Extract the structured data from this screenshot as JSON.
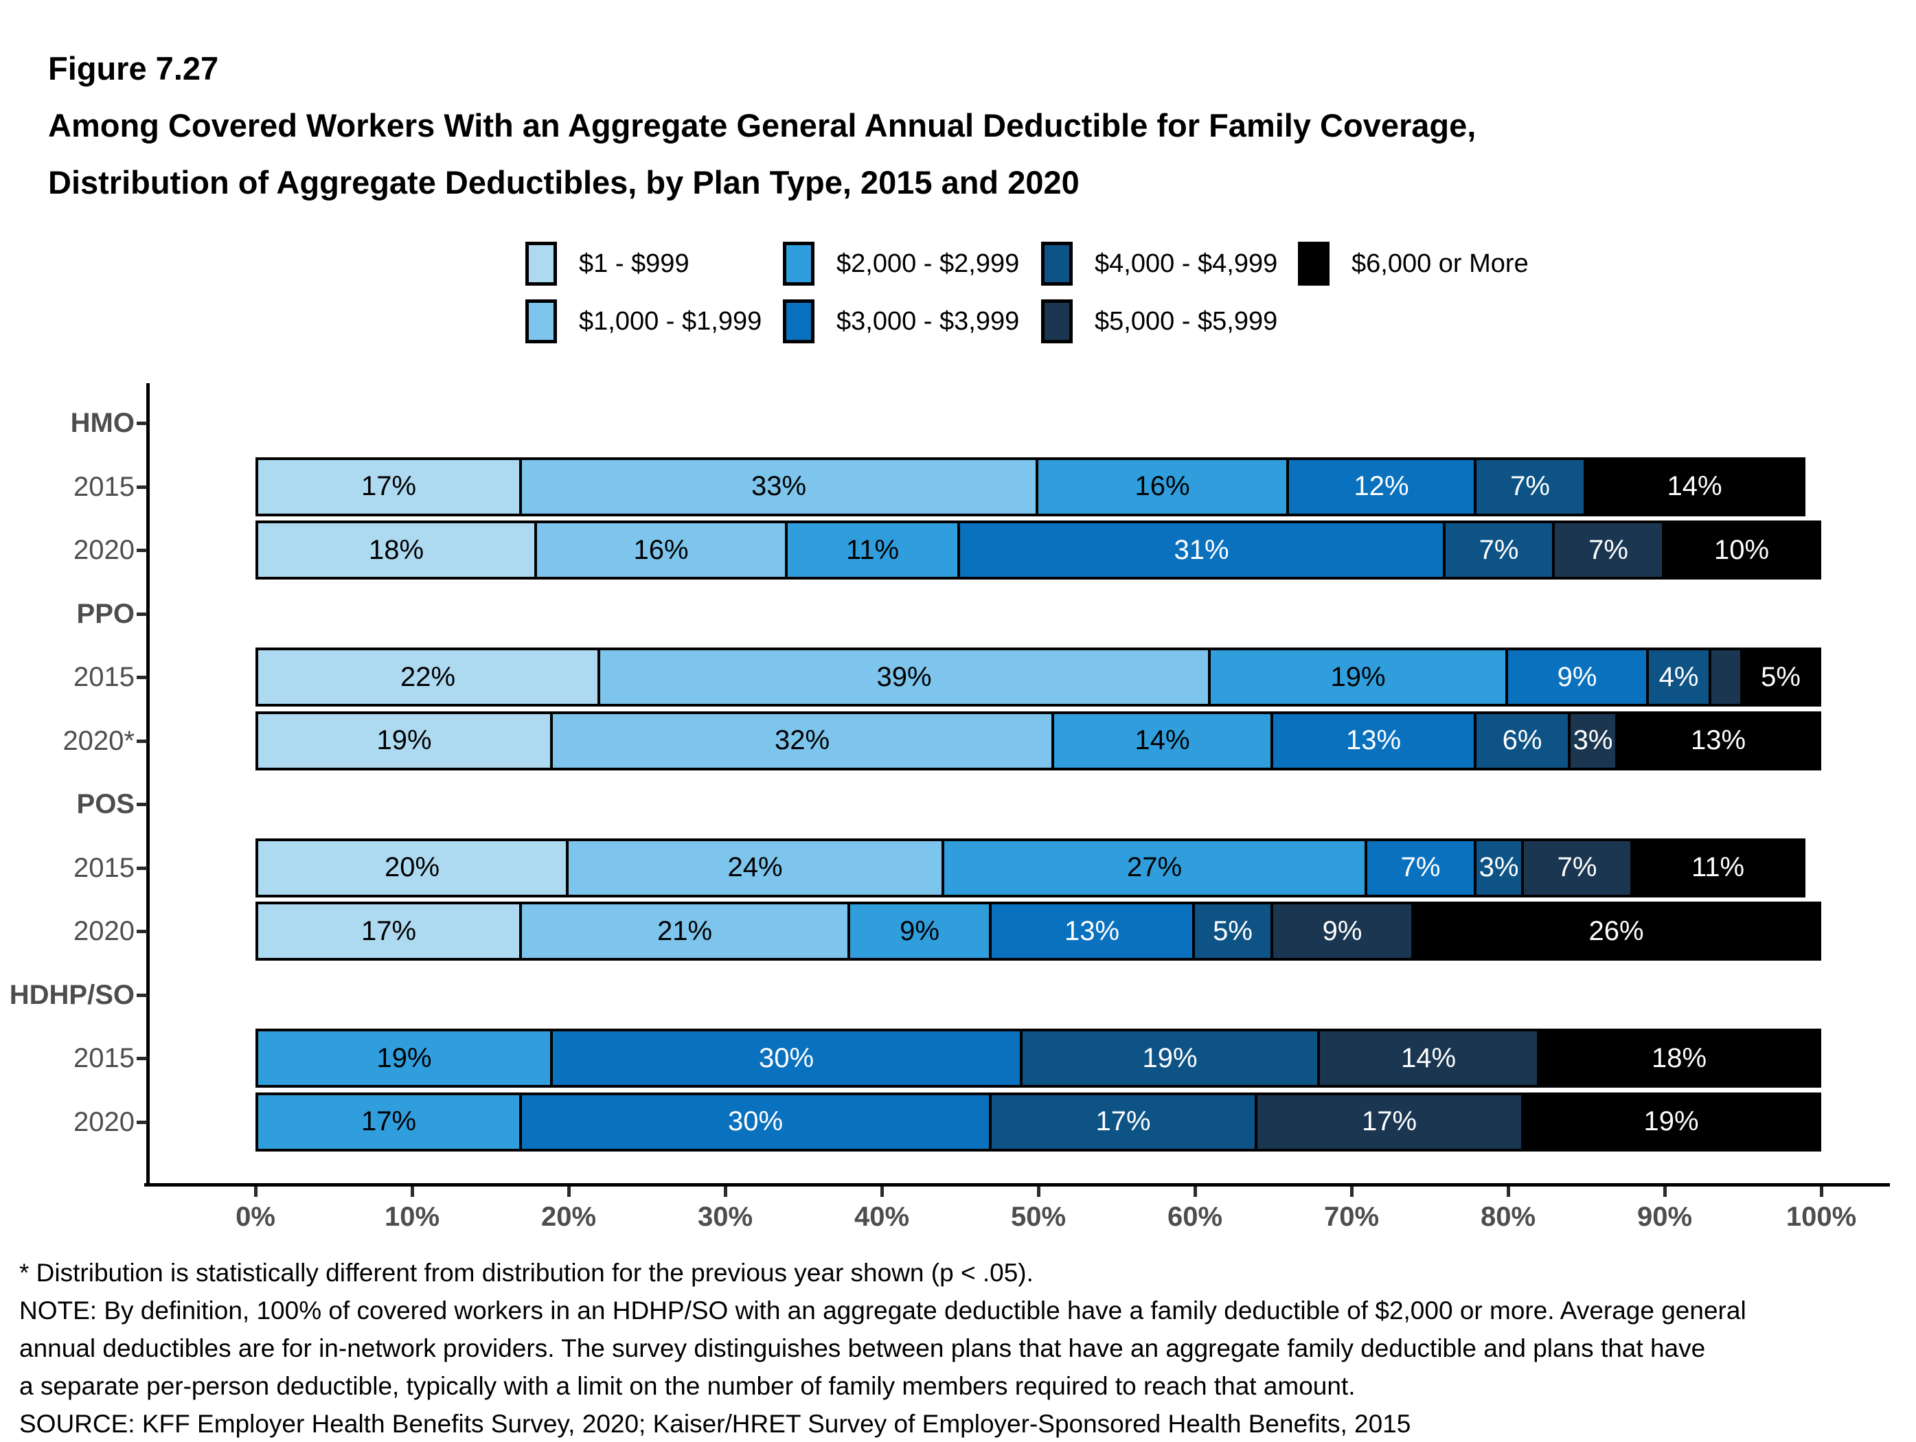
{
  "title": {
    "figure_label": "Figure 7.27",
    "line1": "Among Covered Workers With an Aggregate General Annual Deductible for Family Coverage,",
    "line2": "Distribution of Aggregate Deductibles, by Plan Type, 2015 and 2020"
  },
  "legend": {
    "items": [
      {
        "label": "$1 - $999",
        "color": "#AEDAF1"
      },
      {
        "label": "$1,000 - $1,999",
        "color": "#7DC5EC"
      },
      {
        "label": "$2,000 - $2,999",
        "color": "#309EDD"
      },
      {
        "label": "$3,000 - $3,999",
        "color": "#0A71BF"
      },
      {
        "label": "$4,000 - $4,999",
        "color": "#0E5385"
      },
      {
        "label": "$5,000 - $5,999",
        "color": "#1A3651"
      },
      {
        "label": "$6,000 or More",
        "color": "#000000"
      }
    ]
  },
  "chart_data": {
    "type": "bar",
    "orientation": "horizontal",
    "stacked": true,
    "unit": "%",
    "xlim": [
      0,
      100
    ],
    "grid": false,
    "legend_position": "top",
    "x_ticks": [
      "0%",
      "10%",
      "20%",
      "30%",
      "40%",
      "50%",
      "60%",
      "70%",
      "80%",
      "90%",
      "100%"
    ],
    "categories": [
      "$1 - $999",
      "$1,000 - $1,999",
      "$2,000 - $2,999",
      "$3,000 - $3,999",
      "$4,000 - $4,999",
      "$5,000 - $5,999",
      "$6,000 or More"
    ],
    "category_colors": [
      "#AEDAF1",
      "#7DC5EC",
      "#309EDD",
      "#0A71BF",
      "#0E5385",
      "#1A3651",
      "#000000"
    ],
    "label_text_colors": [
      "#000000",
      "#000000",
      "#000000",
      "#ffffff",
      "#ffffff",
      "#ffffff",
      "#ffffff"
    ],
    "groups": [
      {
        "plan": "HMO",
        "rows": [
          {
            "year": "2015",
            "segments": [
              {
                "category": 0,
                "value": 17
              },
              {
                "category": 1,
                "value": 33
              },
              {
                "category": 2,
                "value": 16
              },
              {
                "category": 3,
                "value": 12
              },
              {
                "category": 4,
                "value": 7
              },
              {
                "category": 6,
                "value": 14
              }
            ]
          },
          {
            "year": "2020",
            "segments": [
              {
                "category": 0,
                "value": 18
              },
              {
                "category": 1,
                "value": 16
              },
              {
                "category": 2,
                "value": 11
              },
              {
                "category": 3,
                "value": 31
              },
              {
                "category": 4,
                "value": 7
              },
              {
                "category": 5,
                "value": 7
              },
              {
                "category": 6,
                "value": 10
              }
            ]
          }
        ]
      },
      {
        "plan": "PPO",
        "rows": [
          {
            "year": "2015",
            "segments": [
              {
                "category": 0,
                "value": 22
              },
              {
                "category": 1,
                "value": 39
              },
              {
                "category": 2,
                "value": 19
              },
              {
                "category": 3,
                "value": 9
              },
              {
                "category": 4,
                "value": 4
              },
              {
                "category": 5,
                "value": 2,
                "show_label": false
              },
              {
                "category": 6,
                "value": 5
              }
            ]
          },
          {
            "year": "2020*",
            "segments": [
              {
                "category": 0,
                "value": 19
              },
              {
                "category": 1,
                "value": 32
              },
              {
                "category": 2,
                "value": 14
              },
              {
                "category": 3,
                "value": 13
              },
              {
                "category": 4,
                "value": 6
              },
              {
                "category": 5,
                "value": 3
              },
              {
                "category": 6,
                "value": 13
              }
            ]
          }
        ]
      },
      {
        "plan": "POS",
        "rows": [
          {
            "year": "2015",
            "segments": [
              {
                "category": 0,
                "value": 20
              },
              {
                "category": 1,
                "value": 24
              },
              {
                "category": 2,
                "value": 27
              },
              {
                "category": 3,
                "value": 7
              },
              {
                "category": 4,
                "value": 3
              },
              {
                "category": 5,
                "value": 7
              },
              {
                "category": 6,
                "value": 11
              }
            ]
          },
          {
            "year": "2020",
            "segments": [
              {
                "category": 0,
                "value": 17
              },
              {
                "category": 1,
                "value": 21
              },
              {
                "category": 2,
                "value": 9
              },
              {
                "category": 3,
                "value": 13
              },
              {
                "category": 4,
                "value": 5
              },
              {
                "category": 5,
                "value": 9
              },
              {
                "category": 6,
                "value": 26
              }
            ]
          }
        ]
      },
      {
        "plan": "HDHP/SO",
        "rows": [
          {
            "year": "2015",
            "segments": [
              {
                "category": 2,
                "value": 19
              },
              {
                "category": 3,
                "value": 30
              },
              {
                "category": 4,
                "value": 19
              },
              {
                "category": 5,
                "value": 14
              },
              {
                "category": 6,
                "value": 18
              }
            ]
          },
          {
            "year": "2020",
            "segments": [
              {
                "category": 2,
                "value": 17
              },
              {
                "category": 3,
                "value": 30
              },
              {
                "category": 4,
                "value": 17
              },
              {
                "category": 5,
                "value": 17
              },
              {
                "category": 6,
                "value": 19
              }
            ]
          }
        ]
      }
    ]
  },
  "footnotes": {
    "lines": [
      "* Distribution is statistically different from distribution for the previous year shown (p < .05).",
      "NOTE: By definition, 100% of covered workers in an HDHP/SO with an aggregate deductible have a family deductible of $2,000 or more. Average general",
      "annual deductibles are for in-network providers. The survey distinguishes between plans that have an aggregate family deductible and plans that have",
      "a separate per-person deductible, typically with a limit on the number of family members required to reach that amount.",
      "SOURCE: KFF Employer Health Benefits Survey, 2020; Kaiser/HRET Survey of Employer-Sponsored Health Benefits, 2015"
    ]
  }
}
